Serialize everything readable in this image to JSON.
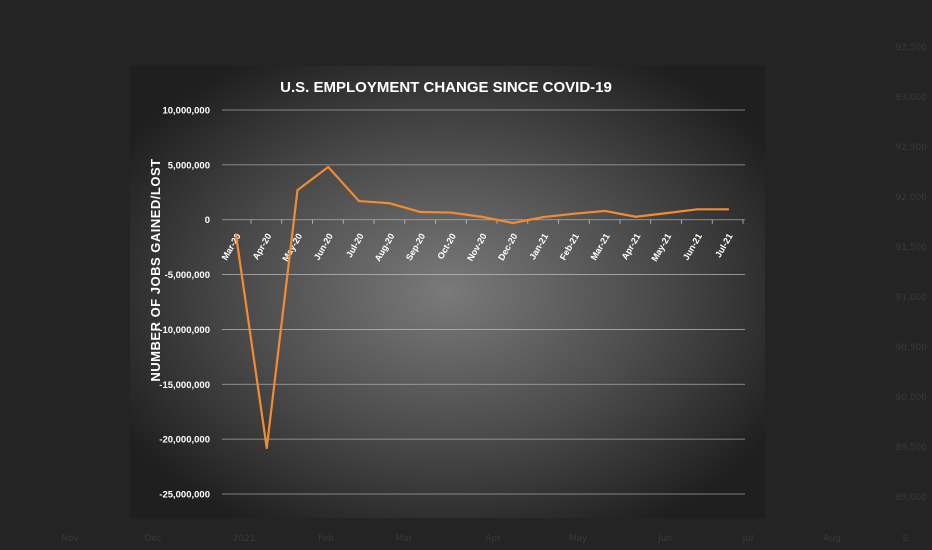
{
  "chart_data": {
    "type": "line",
    "title": "U.S. EMPLOYMENT CHANGE SINCE COVID-19",
    "xlabel": "",
    "ylabel": "NUMBER OF JOBS GAINED/LOST",
    "categories": [
      "Mar-20",
      "Apr-20",
      "May-20",
      "Jun-20",
      "Jul-20",
      "Aug-20",
      "Sep-20",
      "Oct-20",
      "Nov-20",
      "Dec-20",
      "Jan-21",
      "Feb-21",
      "Mar-21",
      "Apr-21",
      "May-21",
      "Jun-21",
      "Jul-21"
    ],
    "values": [
      -1400000,
      -20800000,
      2700000,
      4800000,
      1700000,
      1500000,
      700000,
      650000,
      260000,
      -300000,
      240000,
      550000,
      800000,
      270000,
      600000,
      950000,
      950000
    ],
    "yticks": [
      10000000,
      5000000,
      0,
      -5000000,
      -10000000,
      -15000000,
      -20000000,
      -25000000
    ],
    "ytick_labels": [
      "10,000,000",
      "5,000,000",
      "0",
      "-5,000,000",
      "-10,000,000",
      "-15,000,000",
      "-20,000,000",
      "-25,000,000"
    ],
    "ylim": [
      -25000000,
      10000000
    ],
    "grid": true,
    "line_color": "#f28c32",
    "grid_color": "#c8c8c8"
  },
  "background": {
    "x_ticks": [
      "Nov",
      "Dec",
      "2021",
      "Feb",
      "Mar",
      "Apr",
      "May",
      "Jun",
      "Jul",
      "Aug",
      "S"
    ],
    "y_ticks": [
      "93,500",
      "93,000",
      "92,500",
      "92,000",
      "91,500",
      "91,000",
      "90,500",
      "90,000",
      "89,500",
      "89,000"
    ]
  }
}
